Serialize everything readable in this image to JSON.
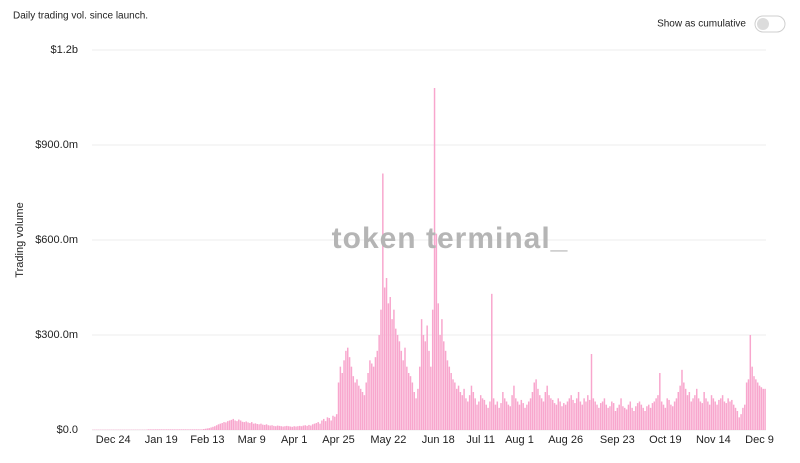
{
  "chart_data": {
    "type": "bar",
    "title": "Daily trading vol. since launch.",
    "y_label": "Trading volume",
    "watermark": "token terminal_",
    "color": "#f8a6cd",
    "grid": true,
    "ylim": [
      0,
      1200000000.0
    ],
    "yticks": [
      {
        "value": 0,
        "label": "$0.0"
      },
      {
        "value": 300000000.0,
        "label": "$300.0m"
      },
      {
        "value": 600000000.0,
        "label": "$600.0m"
      },
      {
        "value": 900000000.0,
        "label": "$900.0m"
      },
      {
        "value": 1200000000.0,
        "label": "$1.2b"
      }
    ],
    "categories": [
      null,
      null,
      null,
      null,
      null,
      null,
      null,
      null,
      null,
      null,
      null,
      "Dec 24",
      null,
      null,
      null,
      null,
      null,
      null,
      null,
      null,
      null,
      null,
      null,
      null,
      null,
      null,
      null,
      null,
      null,
      null,
      null,
      null,
      null,
      null,
      null,
      null,
      null,
      "Jan 19",
      null,
      null,
      null,
      null,
      null,
      null,
      null,
      null,
      null,
      null,
      null,
      null,
      null,
      null,
      null,
      null,
      null,
      null,
      null,
      null,
      null,
      null,
      null,
      null,
      "Feb 13",
      null,
      null,
      null,
      null,
      null,
      null,
      null,
      null,
      null,
      null,
      null,
      null,
      null,
      null,
      null,
      null,
      null,
      null,
      null,
      null,
      null,
      null,
      null,
      "Mar 9",
      null,
      null,
      null,
      null,
      null,
      null,
      null,
      null,
      null,
      null,
      null,
      null,
      null,
      null,
      null,
      null,
      null,
      null,
      null,
      null,
      null,
      null,
      "Apr 1",
      null,
      null,
      null,
      null,
      null,
      null,
      null,
      null,
      null,
      null,
      null,
      null,
      null,
      null,
      null,
      null,
      null,
      null,
      null,
      null,
      null,
      null,
      null,
      "Apr 25",
      null,
      null,
      null,
      null,
      null,
      null,
      null,
      null,
      null,
      null,
      null,
      null,
      null,
      null,
      null,
      null,
      null,
      null,
      null,
      null,
      null,
      null,
      null,
      null,
      null,
      null,
      "May 22",
      null,
      null,
      null,
      null,
      null,
      null,
      null,
      null,
      null,
      null,
      null,
      null,
      null,
      null,
      null,
      null,
      null,
      null,
      null,
      null,
      null,
      null,
      null,
      null,
      null,
      null,
      "Jun 18",
      null,
      null,
      null,
      null,
      null,
      null,
      null,
      null,
      null,
      null,
      null,
      null,
      null,
      null,
      null,
      null,
      null,
      null,
      null,
      null,
      null,
      null,
      "Jul 11",
      null,
      null,
      null,
      null,
      null,
      null,
      null,
      null,
      null,
      null,
      null,
      null,
      null,
      null,
      null,
      null,
      null,
      null,
      null,
      null,
      "Aug 1",
      null,
      null,
      null,
      null,
      null,
      null,
      null,
      null,
      null,
      null,
      null,
      null,
      null,
      null,
      null,
      null,
      null,
      null,
      null,
      null,
      null,
      null,
      null,
      null,
      "Aug 26",
      null,
      null,
      null,
      null,
      null,
      null,
      null,
      null,
      null,
      null,
      null,
      null,
      null,
      null,
      null,
      null,
      null,
      null,
      null,
      null,
      null,
      null,
      null,
      null,
      null,
      null,
      null,
      "Sep 23",
      null,
      null,
      null,
      null,
      null,
      null,
      null,
      null,
      null,
      null,
      null,
      null,
      null,
      null,
      null,
      null,
      null,
      null,
      null,
      null,
      null,
      null,
      null,
      null,
      null,
      "Oct 19",
      null,
      null,
      null,
      null,
      null,
      null,
      null,
      null,
      null,
      null,
      null,
      null,
      null,
      null,
      null,
      null,
      null,
      null,
      null,
      null,
      null,
      null,
      null,
      null,
      null,
      "Nov 14",
      null,
      null,
      null,
      null,
      null,
      null,
      null,
      null,
      null,
      null,
      null,
      null,
      null,
      null,
      null,
      null,
      null,
      null,
      null,
      null,
      null,
      null,
      null,
      null,
      "Dec 9",
      null,
      null,
      null
    ],
    "values": [
      1000000.0,
      1000000.0,
      1000000.0,
      1000000.0,
      1000000.0,
      1000000.0,
      1000000.0,
      1000000.0,
      1000000.0,
      1000000.0,
      1000000.0,
      1000000.0,
      1000000.0,
      1000000.0,
      1000000.0,
      1000000.0,
      1000000.0,
      1000000.0,
      1000000.0,
      1000000.0,
      1000000.0,
      1000000.0,
      1000000.0,
      1000000.0,
      1000000.0,
      1000000.0,
      1000000.0,
      1000000.0,
      1000000.0,
      1000000.0,
      2000000.0,
      2000000.0,
      2000000.0,
      2000000.0,
      2000000.0,
      2000000.0,
      2000000.0,
      2000000.0,
      2000000.0,
      2000000.0,
      2000000.0,
      2000000.0,
      2000000.0,
      2000000.0,
      2000000.0,
      2000000.0,
      2000000.0,
      2000000.0,
      2000000.0,
      2000000.0,
      2000000.0,
      2000000.0,
      2000000.0,
      2000000.0,
      2000000.0,
      2000000.0,
      2000000.0,
      2000000.0,
      2000000.0,
      2000000.0,
      3000000.0,
      4000000.0,
      5000000.0,
      6000000.0,
      8000000.0,
      10000000.0,
      12000000.0,
      15000000.0,
      18000000.0,
      20000000.0,
      22000000.0,
      25000000.0,
      24000000.0,
      28000000.0,
      30000000.0,
      32000000.0,
      35000000.0,
      30000000.0,
      28000000.0,
      33000000.0,
      30000000.0,
      26000000.0,
      25000000.0,
      27000000.0,
      24000000.0,
      22000000.0,
      25000000.0,
      20000000.0,
      21000000.0,
      19000000.0,
      18000000.0,
      20000000.0,
      17000000.0,
      16000000.0,
      18000000.0,
      15000000.0,
      14000000.0,
      15000000.0,
      13000000.0,
      12000000.0,
      14000000.0,
      13000000.0,
      12000000.0,
      11000000.0,
      12000000.0,
      13000000.0,
      12000000.0,
      11000000.0,
      10000000.0,
      12000000.0,
      11000000.0,
      12000000.0,
      13000000.0,
      12000000.0,
      14000000.0,
      15000000.0,
      13000000.0,
      16000000.0,
      14000000.0,
      18000000.0,
      20000000.0,
      22000000.0,
      25000000.0,
      20000000.0,
      30000000.0,
      35000000.0,
      28000000.0,
      40000000.0,
      38000000.0,
      30000000.0,
      45000000.0,
      42000000.0,
      50000000.0,
      150000000.0,
      200000000.0,
      180000000.0,
      220000000.0,
      250000000.0,
      260000000.0,
      230000000.0,
      200000000.0,
      170000000.0,
      150000000.0,
      160000000.0,
      140000000.0,
      130000000.0,
      120000000.0,
      110000000.0,
      150000000.0,
      180000000.0,
      220000000.0,
      210000000.0,
      200000000.0,
      230000000.0,
      250000000.0,
      300000000.0,
      380000000.0,
      810000000.0,
      450000000.0,
      480000000.0,
      400000000.0,
      420000000.0,
      350000000.0,
      380000000.0,
      320000000.0,
      300000000.0,
      280000000.0,
      250000000.0,
      220000000.0,
      260000000.0,
      200000000.0,
      180000000.0,
      170000000.0,
      150000000.0,
      120000000.0,
      100000000.0,
      130000000.0,
      200000000.0,
      350000000.0,
      300000000.0,
      280000000.0,
      330000000.0,
      250000000.0,
      200000000.0,
      380000000.0,
      1080000000.0,
      620000000.0,
      400000000.0,
      300000000.0,
      350000000.0,
      280000000.0,
      250000000.0,
      220000000.0,
      200000000.0,
      180000000.0,
      160000000.0,
      150000000.0,
      130000000.0,
      140000000.0,
      120000000.0,
      110000000.0,
      130000000.0,
      100000000.0,
      90000000.0,
      110000000.0,
      140000000.0,
      120000000.0,
      100000000.0,
      80000000.0,
      90000000.0,
      110000000.0,
      100000000.0,
      95000000.0,
      80000000.0,
      70000000.0,
      90000000.0,
      430000000.0,
      100000000.0,
      80000000.0,
      90000000.0,
      70000000.0,
      85000000.0,
      120000000.0,
      100000000.0,
      90000000.0,
      80000000.0,
      75000000.0,
      110000000.0,
      140000000.0,
      100000000.0,
      90000000.0,
      80000000.0,
      95000000.0,
      85000000.0,
      70000000.0,
      80000000.0,
      90000000.0,
      100000000.0,
      120000000.0,
      150000000.0,
      160000000.0,
      130000000.0,
      110000000.0,
      100000000.0,
      90000000.0,
      120000000.0,
      140000000.0,
      110000000.0,
      100000000.0,
      95000000.0,
      85000000.0,
      80000000.0,
      100000000.0,
      90000000.0,
      75000000.0,
      85000000.0,
      80000000.0,
      90000000.0,
      100000000.0,
      110000000.0,
      95000000.0,
      85000000.0,
      100000000.0,
      120000000.0,
      90000000.0,
      80000000.0,
      100000000.0,
      90000000.0,
      110000000.0,
      95000000.0,
      240000000.0,
      100000000.0,
      90000000.0,
      80000000.0,
      70000000.0,
      85000000.0,
      90000000.0,
      100000000.0,
      80000000.0,
      70000000.0,
      75000000.0,
      90000000.0,
      85000000.0,
      60000000.0,
      70000000.0,
      80000000.0,
      100000000.0,
      75000000.0,
      70000000.0,
      65000000.0,
      80000000.0,
      90000000.0,
      70000000.0,
      60000000.0,
      75000000.0,
      85000000.0,
      90000000.0,
      80000000.0,
      70000000.0,
      60000000.0,
      75000000.0,
      80000000.0,
      70000000.0,
      85000000.0,
      90000000.0,
      100000000.0,
      110000000.0,
      180000000.0,
      90000000.0,
      80000000.0,
      70000000.0,
      100000000.0,
      95000000.0,
      80000000.0,
      75000000.0,
      90000000.0,
      100000000.0,
      120000000.0,
      140000000.0,
      190000000.0,
      150000000.0,
      130000000.0,
      110000000.0,
      120000000.0,
      90000000.0,
      100000000.0,
      110000000.0,
      130000000.0,
      100000000.0,
      90000000.0,
      85000000.0,
      120000000.0,
      100000000.0,
      90000000.0,
      80000000.0,
      110000000.0,
      100000000.0,
      90000000.0,
      80000000.0,
      95000000.0,
      100000000.0,
      110000000.0,
      90000000.0,
      85000000.0,
      100000000.0,
      90000000.0,
      95000000.0,
      80000000.0,
      70000000.0,
      60000000.0,
      40000000.0,
      50000000.0,
      70000000.0,
      80000000.0,
      150000000.0,
      160000000.0,
      300000000.0,
      200000000.0,
      170000000.0,
      160000000.0,
      150000000.0,
      140000000.0,
      135000000.0,
      130000000.0,
      130000000.0
    ]
  },
  "controls": {
    "cumulative_label": "Show as cumulative",
    "cumulative_on": false
  }
}
